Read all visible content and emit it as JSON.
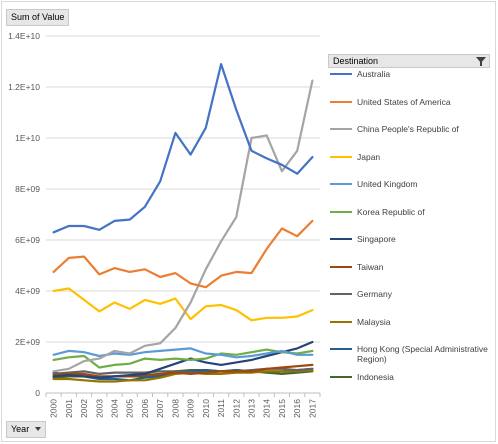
{
  "pivot": {
    "value_field": "Sum of Value",
    "row_field": "Year",
    "legend_field": "Destination"
  },
  "chart_data": {
    "type": "line",
    "title": "",
    "xlabel": "",
    "ylabel": "",
    "ylim": [
      0,
      14000000000
    ],
    "y_ticks": [
      "0",
      "2E+09",
      "4E+09",
      "6E+09",
      "8E+09",
      "1E+10",
      "1.2E+10",
      "1.4E+10"
    ],
    "y_tick_values": [
      0,
      2000000000,
      4000000000,
      6000000000,
      8000000000,
      10000000000,
      12000000000,
      14000000000
    ],
    "grid": "horizontal",
    "legend_position": "right",
    "categories": [
      "2000",
      "2001",
      "2002",
      "2003",
      "2004",
      "2005",
      "2006",
      "2007",
      "2008",
      "2009",
      "2010",
      "2011",
      "2012",
      "2013",
      "2014",
      "2015",
      "2016",
      "2017"
    ],
    "series": [
      {
        "name": "Australia",
        "color": "#4472c4",
        "values": [
          6300000000,
          6550000000,
          6550000000,
          6400000000,
          6750000000,
          6800000000,
          7300000000,
          8300000000,
          10200000000,
          9350000000,
          10400000000,
          12900000000,
          11100000000,
          9500000000,
          9200000000,
          8950000000,
          8600000000,
          9250000000
        ]
      },
      {
        "name": "United States of America",
        "color": "#ed7d31",
        "values": [
          4750000000,
          5300000000,
          5350000000,
          4650000000,
          4900000000,
          4750000000,
          4850000000,
          4550000000,
          4700000000,
          4300000000,
          4150000000,
          4600000000,
          4750000000,
          4700000000,
          5650000000,
          6450000000,
          6150000000,
          6750000000
        ]
      },
      {
        "name": "China  People's Republic of",
        "color": "#a5a5a5",
        "values": [
          850000000,
          950000000,
          1250000000,
          1350000000,
          1650000000,
          1550000000,
          1850000000,
          1950000000,
          2550000000,
          3550000000,
          4850000000,
          5950000000,
          6900000000,
          10000000000,
          10100000000,
          8700000000,
          9500000000,
          12250000000
        ]
      },
      {
        "name": "Japan",
        "color": "#ffc000",
        "values": [
          4000000000,
          4100000000,
          3650000000,
          3200000000,
          3550000000,
          3300000000,
          3650000000,
          3500000000,
          3700000000,
          2900000000,
          3400000000,
          3450000000,
          3250000000,
          2850000000,
          2950000000,
          2950000000,
          3000000000,
          3250000000
        ]
      },
      {
        "name": "United Kingdom",
        "color": "#5b9bd5",
        "values": [
          1500000000,
          1650000000,
          1600000000,
          1450000000,
          1550000000,
          1500000000,
          1600000000,
          1650000000,
          1700000000,
          1750000000,
          1550000000,
          1500000000,
          1400000000,
          1450000000,
          1550000000,
          1650000000,
          1500000000,
          1500000000
        ]
      },
      {
        "name": "Korea  Republic of",
        "color": "#70ad47",
        "values": [
          1300000000,
          1400000000,
          1450000000,
          1000000000,
          1100000000,
          1150000000,
          1350000000,
          1300000000,
          1350000000,
          1300000000,
          1350000000,
          1550000000,
          1500000000,
          1600000000,
          1700000000,
          1600000000,
          1550000000,
          1650000000
        ]
      },
      {
        "name": "Singapore",
        "color": "#264478",
        "values": [
          650000000,
          700000000,
          650000000,
          600000000,
          650000000,
          700000000,
          750000000,
          950000000,
          1150000000,
          1350000000,
          1200000000,
          1100000000,
          1200000000,
          1300000000,
          1450000000,
          1600000000,
          1750000000,
          2000000000
        ]
      },
      {
        "name": "Taiwan",
        "color": "#9e480e",
        "values": [
          700000000,
          750000000,
          750000000,
          650000000,
          650000000,
          650000000,
          700000000,
          750000000,
          800000000,
          750000000,
          800000000,
          850000000,
          850000000,
          850000000,
          950000000,
          1000000000,
          1050000000,
          1100000000
        ]
      },
      {
        "name": "Germany",
        "color": "#636363",
        "values": [
          750000000,
          800000000,
          850000000,
          750000000,
          800000000,
          800000000,
          800000000,
          850000000,
          850000000,
          800000000,
          800000000,
          850000000,
          850000000,
          900000000,
          950000000,
          950000000,
          900000000,
          950000000
        ]
      },
      {
        "name": "Malaysia",
        "color": "#997300",
        "values": [
          550000000,
          550000000,
          500000000,
          450000000,
          450000000,
          500000000,
          500000000,
          600000000,
          750000000,
          800000000,
          750000000,
          750000000,
          800000000,
          800000000,
          850000000,
          850000000,
          850000000,
          900000000
        ]
      },
      {
        "name": "Hong Kong (Special Administrative Region)",
        "color": "#255e91",
        "values": [
          800000000,
          700000000,
          650000000,
          550000000,
          550000000,
          500000000,
          600000000,
          650000000,
          800000000,
          850000000,
          900000000,
          850000000,
          900000000,
          850000000,
          850000000,
          850000000,
          900000000,
          950000000
        ]
      },
      {
        "name": "Indonesia",
        "color": "#43682b",
        "values": [
          600000000,
          650000000,
          650000000,
          600000000,
          650000000,
          650000000,
          650000000,
          700000000,
          850000000,
          900000000,
          900000000,
          850000000,
          900000000,
          850000000,
          800000000,
          750000000,
          800000000,
          850000000
        ]
      }
    ]
  }
}
